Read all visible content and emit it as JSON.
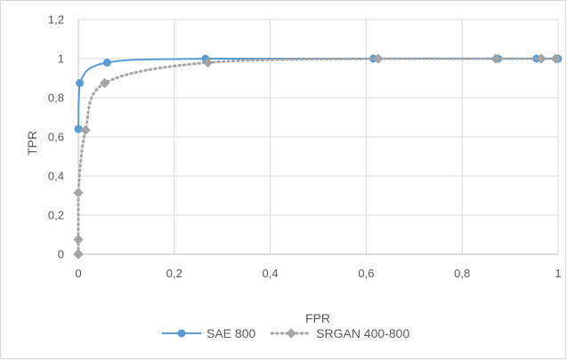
{
  "chart_data": {
    "type": "line",
    "title": "",
    "xlabel": "FPR",
    "ylabel": "TPR",
    "xlim": [
      0,
      1
    ],
    "ylim": [
      0,
      1.2
    ],
    "x_ticks": [
      "0",
      "0,2",
      "0,4",
      "0,6",
      "0,8",
      "1"
    ],
    "y_ticks": [
      "0",
      "0,2",
      "0,4",
      "0,6",
      "0,8",
      "1",
      "1,2"
    ],
    "grid": "horizontal",
    "legend_position": "bottom",
    "series": [
      {
        "name": "SAE 800",
        "color": "#5b9bd5",
        "line_style": "solid",
        "marker": "circle",
        "points": [
          [
            0,
            0.64
          ],
          [
            0.003,
            0.875
          ],
          [
            0.06,
            0.98
          ],
          [
            0.265,
            1.0
          ],
          [
            0.615,
            1.0
          ],
          [
            0.875,
            1.0
          ],
          [
            0.955,
            1.0
          ],
          [
            1.0,
            1.0
          ]
        ]
      },
      {
        "name": "SRGAN 400-800",
        "color": "#a5a5a5",
        "line_style": "dotted",
        "marker": "diamond",
        "points": [
          [
            0,
            0.0
          ],
          [
            0,
            0.075
          ],
          [
            0,
            0.315
          ],
          [
            0.015,
            0.635
          ],
          [
            0.055,
            0.875
          ],
          [
            0.27,
            0.98
          ],
          [
            0.625,
            1.0
          ],
          [
            0.87,
            1.0
          ],
          [
            0.965,
            1.0
          ],
          [
            0.995,
            1.0
          ]
        ]
      }
    ]
  }
}
